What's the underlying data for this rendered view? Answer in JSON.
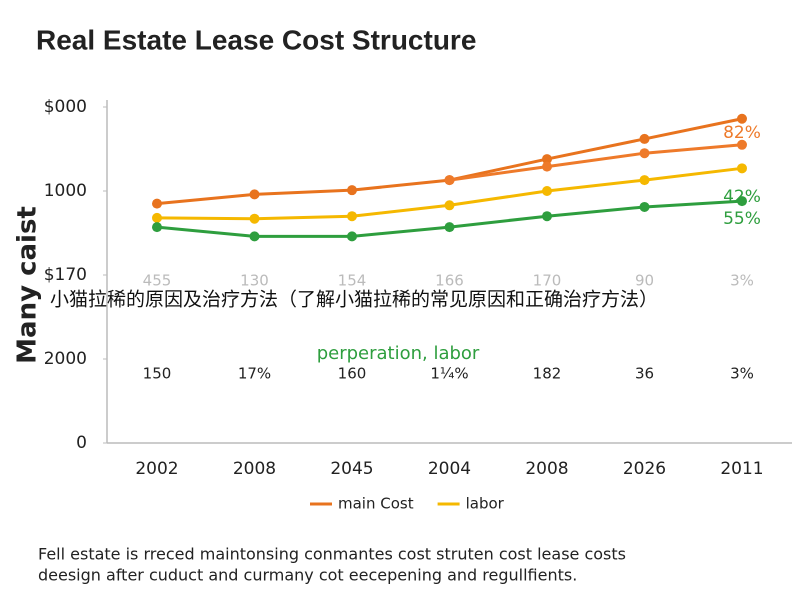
{
  "chart_data": {
    "type": "line",
    "title": "Real Estate Lease Cost Structure",
    "ylabel": "Many caist",
    "categories": [
      "2002",
      "2008",
      "2045",
      "2004",
      "2008",
      "2026",
      "2011"
    ],
    "ylim": [
      0,
      4
    ],
    "yticks": [
      0,
      {
        "value": 1,
        "label": "2000"
      },
      {
        "value": 2,
        "label": "$170"
      },
      {
        "value": 3,
        "label": "1000"
      },
      {
        "value": 4,
        "label": "$000"
      }
    ],
    "series": [
      {
        "name": "main Cost",
        "color": "#e8731e",
        "values": [
          2.85,
          2.96,
          3.01,
          3.13,
          3.38,
          3.62,
          3.86
        ]
      },
      {
        "color": "#ee7a2a",
        "values": [
          null,
          null,
          null,
          3.13,
          3.29,
          3.45,
          3.55
        ],
        "labels": [
          "82%"
        ]
      },
      {
        "name": "labor",
        "color": "#f5b800",
        "values": [
          2.68,
          2.67,
          2.7,
          2.83,
          3.0,
          3.13,
          3.27
        ]
      },
      {
        "color": "#2e9e3e",
        "values": [
          2.57,
          2.46,
          2.46,
          2.57,
          2.7,
          2.81,
          2.88
        ],
        "labels": [
          "42%",
          "55%"
        ]
      }
    ],
    "row_labels": [
      [
        "455",
        "130",
        "154",
        "166",
        "170",
        "90",
        "3%"
      ],
      [
        "150",
        "17%",
        "160",
        "1¼%",
        "182",
        "36",
        "3%"
      ]
    ],
    "annotation": "perperation, labor",
    "overlay_text": "小猫拉稀的原因及治疗方法（了解小猫拉稀的常见原因和正确治疗方法）",
    "footnote": [
      "Fell estate is rreced maintonsing conmantes cost struten cost lease costs",
      "deesign after cuduct and curmany cot eecepening and regullfients."
    ],
    "legend": "bottom"
  }
}
